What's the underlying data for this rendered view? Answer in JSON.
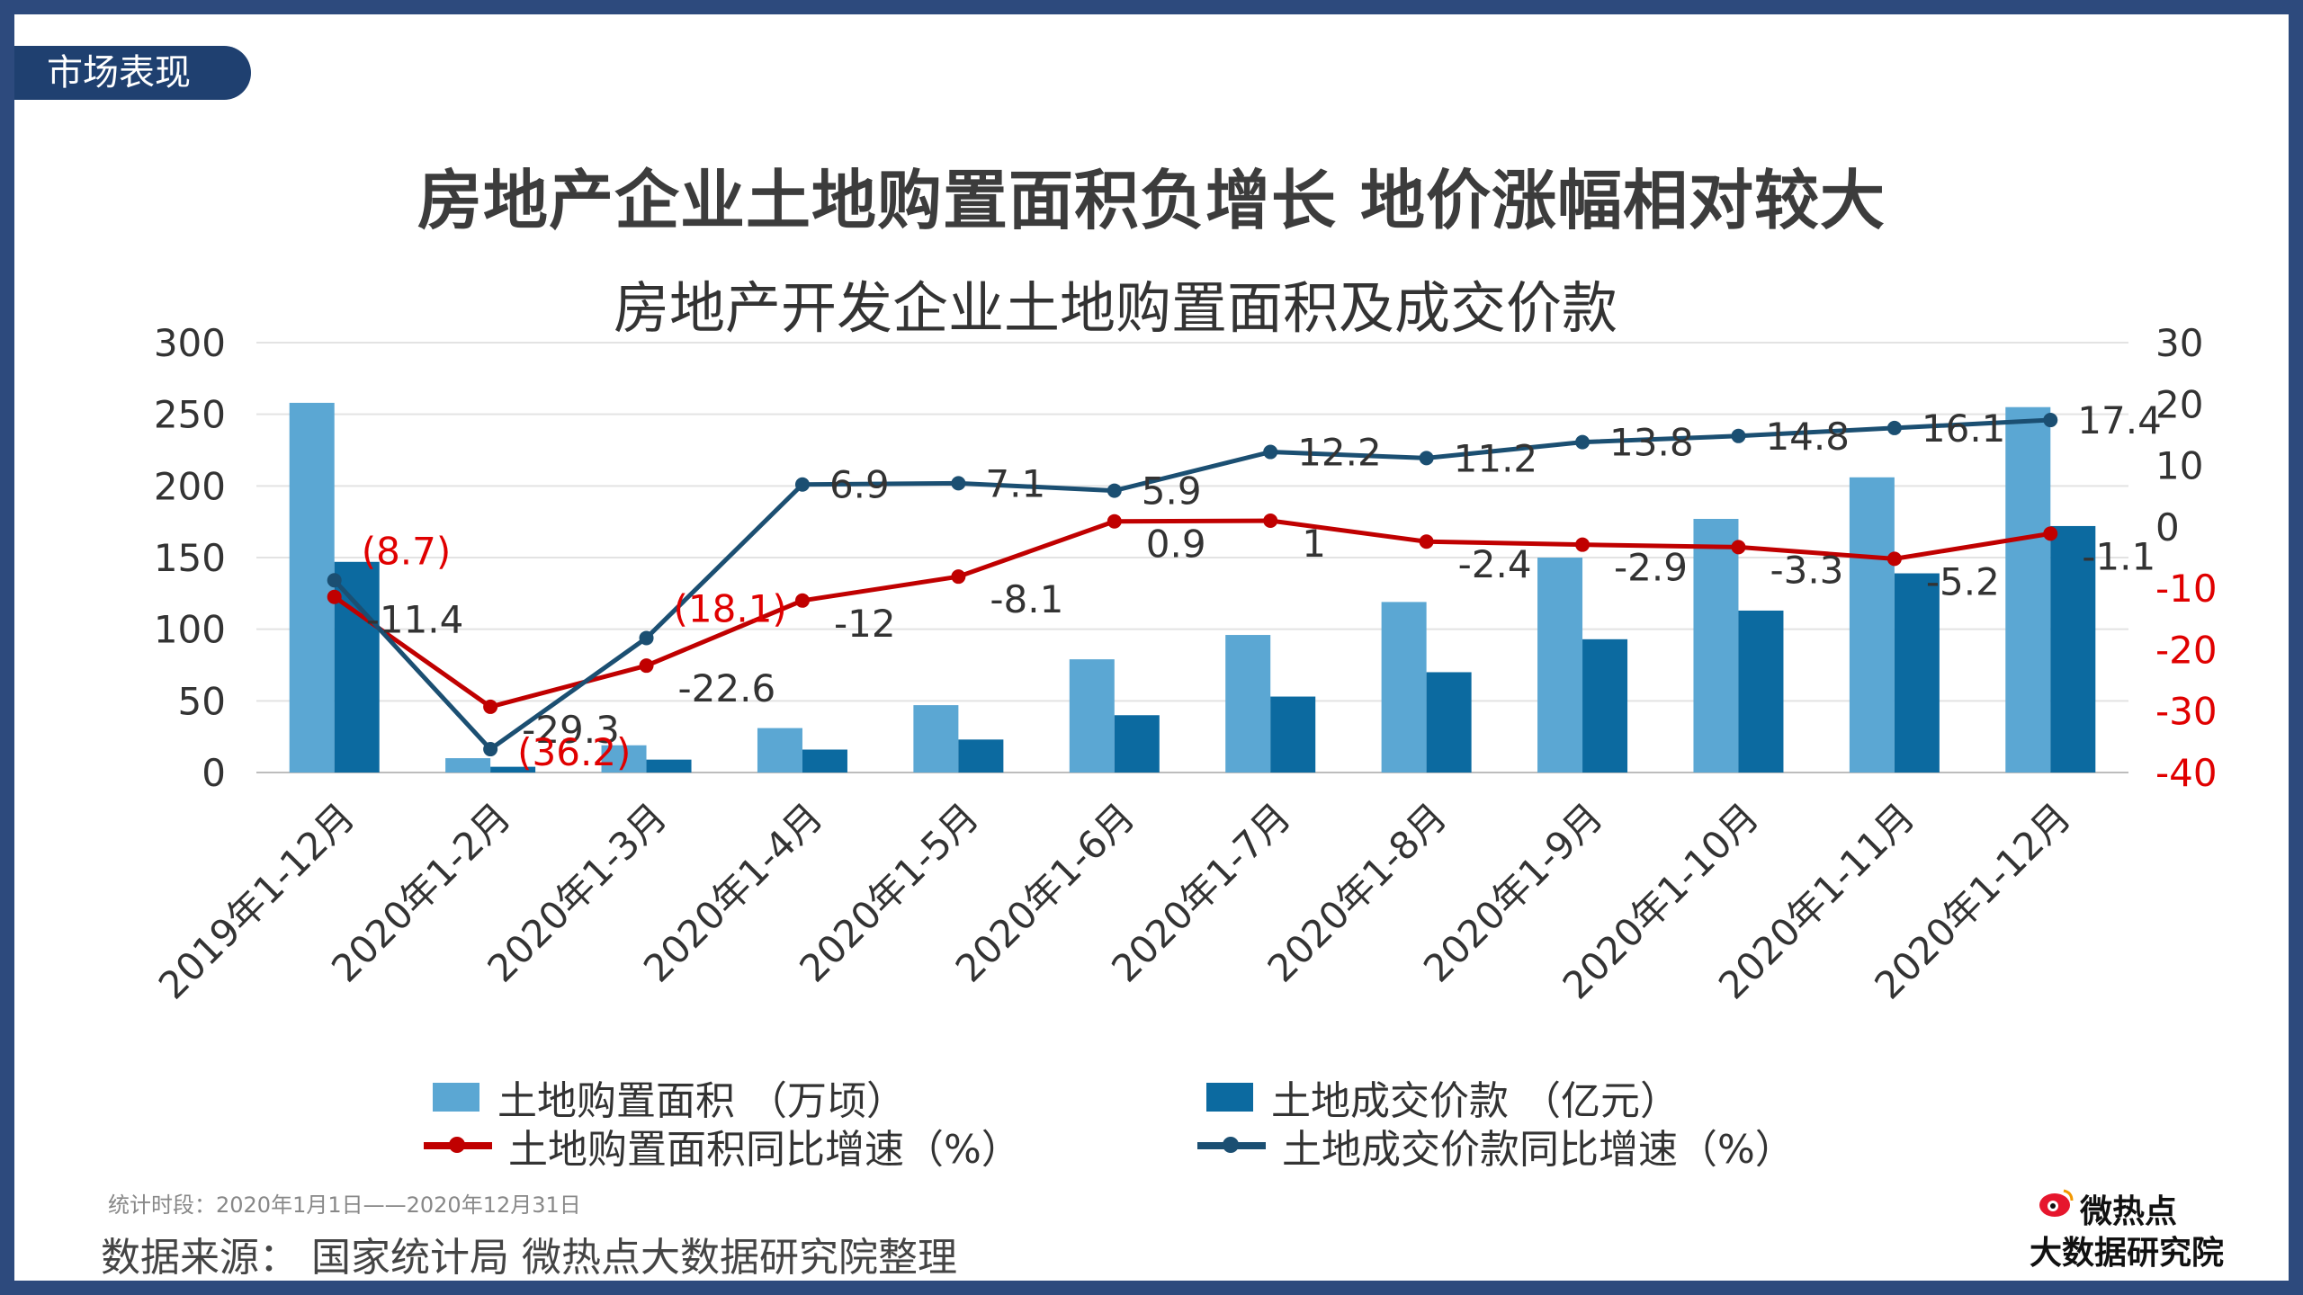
{
  "tag": "市场表现",
  "main_title": "房地产企业土地购置面积负增长 地价涨幅相对较大",
  "chart_data": {
    "type": "bar+line",
    "title": "房地产开发企业土地购置面积及成交价款",
    "categories": [
      "2019年1-12月",
      "2020年1-2月",
      "2020年1-3月",
      "2020年1-4月",
      "2020年1-5月",
      "2020年1-6月",
      "2020年1-7月",
      "2020年1-8月",
      "2020年1-9月",
      "2020年1-10月",
      "2020年1-11月",
      "2020年1-12月"
    ],
    "left_axis": {
      "ylim": [
        0,
        300
      ],
      "ticks": [
        0,
        50,
        100,
        150,
        200,
        250,
        300
      ]
    },
    "right_axis": {
      "ylim": [
        -40,
        30
      ],
      "ticks": [
        -40,
        -30,
        -20,
        -10,
        0,
        10,
        20,
        30
      ],
      "negative_color": "#e00000"
    },
    "series": [
      {
        "name": "土地购置面积 （万顷）",
        "type": "bar",
        "axis": "left",
        "color": "#5ba7d3",
        "values": [
          258,
          10,
          19,
          31,
          47,
          79,
          96,
          119,
          150,
          177,
          206,
          255
        ]
      },
      {
        "name": "土地成交价款 （亿元）",
        "type": "bar",
        "axis": "left",
        "color": "#0c6aa0",
        "values": [
          147,
          4,
          9,
          16,
          23,
          40,
          53,
          70,
          93,
          113,
          139,
          172
        ]
      },
      {
        "name": "土地购置面积同比增速（%）",
        "type": "line",
        "axis": "right",
        "color": "#c00000",
        "values": [
          -11.4,
          -29.3,
          -22.6,
          -12,
          -8.1,
          0.9,
          1,
          -2.4,
          -2.9,
          -3.3,
          -5.2,
          -1.1
        ],
        "labels": [
          "-11.4",
          "-29.3",
          "-22.6",
          "-12",
          "-8.1",
          "0.9",
          "1",
          "-2.4",
          "-2.9",
          "-3.3",
          "-5.2",
          "-1.1"
        ]
      },
      {
        "name": "土地成交价款同比增速（%）",
        "type": "line",
        "axis": "right",
        "color": "#1b4f72",
        "values": [
          -8.7,
          -36.2,
          -18.1,
          6.9,
          7.1,
          5.9,
          12.2,
          11.2,
          13.8,
          14.8,
          16.1,
          17.4
        ],
        "labels": [
          "(8.7)",
          "(36.2)",
          "(18.1)",
          "6.9",
          "7.1",
          "5.9",
          "12.2",
          "11.2",
          "13.8",
          "14.8",
          "16.1",
          "17.4"
        ]
      }
    ],
    "legend_position": "bottom",
    "grid": "horizontal"
  },
  "footer": {
    "period": "统计时段：2020年1月1日——2020年12月31日",
    "source": "数据来源：  国家统计局  微热点大数据研究院整理"
  },
  "logo": {
    "line1": "微热点",
    "line2": "大数据研究院",
    "icon": "weibo-eye-icon"
  }
}
